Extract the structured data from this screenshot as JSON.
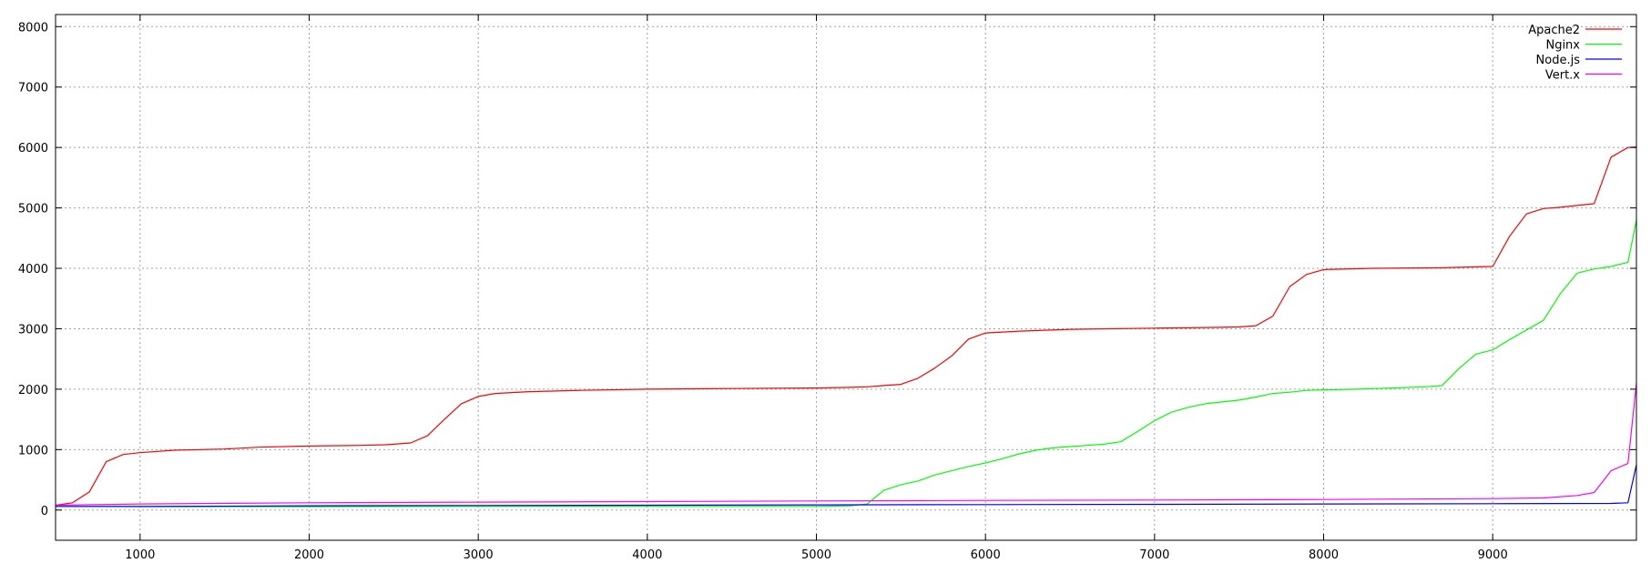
{
  "chart_data": {
    "type": "line",
    "title": "",
    "xlabel": "",
    "ylabel": "",
    "xlim": [
      500,
      9850
    ],
    "ylim": [
      -500,
      8200
    ],
    "xticks": [
      1000,
      2000,
      3000,
      4000,
      5000,
      6000,
      7000,
      8000,
      9000
    ],
    "yticks": [
      0,
      1000,
      2000,
      3000,
      4000,
      5000,
      6000,
      7000,
      8000
    ],
    "grid": true,
    "legend_position": "top-right",
    "series": [
      {
        "name": "Apache2",
        "color": "#ff0000",
        "x": [
          500,
          600,
          700,
          800,
          900,
          1000,
          1200,
          1500,
          1700,
          2000,
          2300,
          2450,
          2500,
          2600,
          2700,
          2800,
          2900,
          3000,
          3100,
          3300,
          3600,
          4000,
          4500,
          5000,
          5200,
          5300,
          5400,
          5500,
          5600,
          5700,
          5800,
          5900,
          6000,
          6200,
          6500,
          7000,
          7300,
          7500,
          7600,
          7700,
          7800,
          7900,
          8000,
          8300,
          8700,
          9000,
          9100,
          9200,
          9300,
          9400,
          9500,
          9600,
          9700,
          9800,
          9850
        ],
        "y": [
          80,
          120,
          300,
          800,
          920,
          950,
          990,
          1010,
          1040,
          1060,
          1070,
          1080,
          1090,
          1110,
          1230,
          1500,
          1760,
          1880,
          1930,
          1960,
          1980,
          2000,
          2010,
          2020,
          2030,
          2040,
          2060,
          2080,
          2180,
          2350,
          2550,
          2830,
          2930,
          2960,
          2990,
          3010,
          3020,
          3030,
          3050,
          3210,
          3700,
          3900,
          3980,
          4000,
          4010,
          4030,
          4530,
          4900,
          4990,
          5010,
          5040,
          5070,
          5840,
          6000,
          6010
        ]
      },
      {
        "name": "Nginx",
        "color": "#00ff00",
        "x": [
          500,
          1000,
          2000,
          3000,
          4000,
          5000,
          5200,
          5300,
          5400,
          5500,
          5600,
          5700,
          5800,
          5900,
          6000,
          6100,
          6200,
          6300,
          6400,
          6500,
          6600,
          6700,
          6800,
          6900,
          7000,
          7100,
          7200,
          7300,
          7400,
          7500,
          7600,
          7700,
          7800,
          7900,
          8000,
          8200,
          8400,
          8600,
          8700,
          8800,
          8900,
          9000,
          9100,
          9200,
          9300,
          9400,
          9500,
          9600,
          9700,
          9800,
          9850
        ],
        "y": [
          60,
          55,
          55,
          60,
          60,
          60,
          70,
          100,
          330,
          420,
          480,
          580,
          650,
          720,
          780,
          850,
          930,
          990,
          1030,
          1050,
          1070,
          1090,
          1130,
          1300,
          1480,
          1620,
          1700,
          1760,
          1790,
          1820,
          1870,
          1930,
          1950,
          1980,
          1990,
          2000,
          2020,
          2040,
          2060,
          2340,
          2580,
          2650,
          2820,
          2980,
          3140,
          3580,
          3920,
          3990,
          4030,
          4100,
          4800
        ]
      },
      {
        "name": "Node.js",
        "color": "#0000ff",
        "x": [
          500,
          1000,
          2000,
          3000,
          4000,
          5000,
          6000,
          7000,
          8000,
          9000,
          9700,
          9800,
          9850
        ],
        "y": [
          60,
          60,
          70,
          75,
          80,
          85,
          90,
          95,
          100,
          105,
          110,
          120,
          750
        ]
      },
      {
        "name": "Vert.x",
        "color": "#ff00ff",
        "x": [
          500,
          1000,
          2000,
          3000,
          4000,
          5000,
          6000,
          7000,
          8000,
          9000,
          9300,
          9500,
          9600,
          9700,
          9800,
          9850
        ],
        "y": [
          80,
          100,
          120,
          130,
          140,
          150,
          160,
          165,
          175,
          190,
          200,
          240,
          290,
          650,
          770,
          2100
        ]
      }
    ]
  }
}
